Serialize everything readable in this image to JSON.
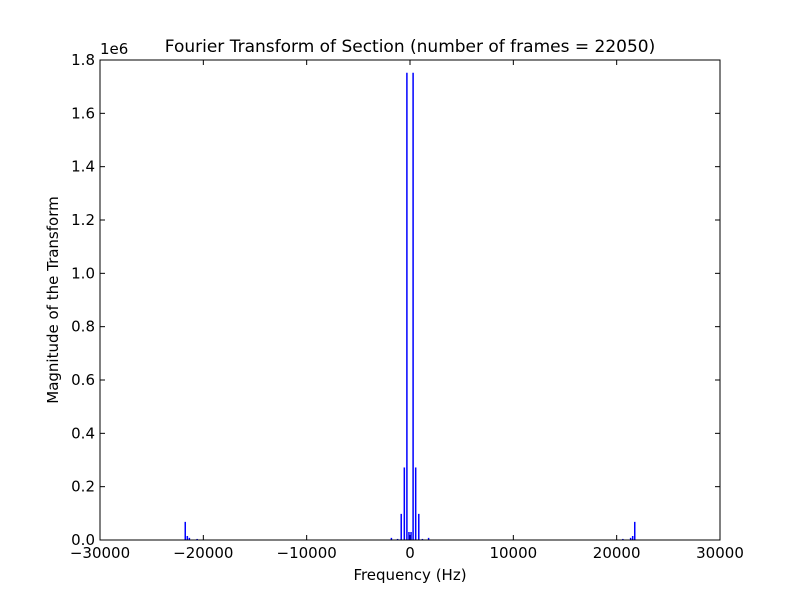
{
  "chart_data": {
    "type": "line",
    "title": "Fourier Transform of Section  (number of frames = 22050)",
    "xlabel": "Frequency (Hz)",
    "ylabel": "Magnitude of the Transform",
    "offset_label": "1e6",
    "xlim": [
      -30000,
      30000
    ],
    "ylim": [
      0,
      1.8
    ],
    "xticks": [
      {
        "value": -30000,
        "label": "−30000"
      },
      {
        "value": -20000,
        "label": "−20000"
      },
      {
        "value": -10000,
        "label": "−10000"
      },
      {
        "value": 0,
        "label": "0"
      },
      {
        "value": 10000,
        "label": "10000"
      },
      {
        "value": 20000,
        "label": "20000"
      },
      {
        "value": 30000,
        "label": "30000"
      }
    ],
    "yticks": [
      {
        "value": 0.0,
        "label": "0.0"
      },
      {
        "value": 0.2,
        "label": "0.2"
      },
      {
        "value": 0.4,
        "label": "0.4"
      },
      {
        "value": 0.6,
        "label": "0.6"
      },
      {
        "value": 0.8,
        "label": "0.8"
      },
      {
        "value": 1.0,
        "label": "1.0"
      },
      {
        "value": 1.2,
        "label": "1.2"
      },
      {
        "value": 1.4,
        "label": "1.4"
      },
      {
        "value": 1.6,
        "label": "1.6"
      },
      {
        "value": 1.8,
        "label": "1.8"
      }
    ],
    "grid": false,
    "series_color": "#0000ff",
    "series": [
      {
        "x": [
          -21750,
          -21550,
          -21350,
          -20600,
          -1800,
          -1200,
          -850,
          -550,
          -300,
          -100,
          100,
          300,
          550,
          850,
          1200,
          1800,
          20600,
          21350,
          21550,
          21750
        ],
        "y": [
          0.068,
          0.015,
          0.008,
          0.004,
          0.008,
          0.004,
          0.098,
          0.272,
          1.752,
          0.03,
          0.03,
          1.752,
          0.272,
          0.098,
          0.004,
          0.008,
          0.004,
          0.008,
          0.015,
          0.068
        ]
      }
    ]
  }
}
